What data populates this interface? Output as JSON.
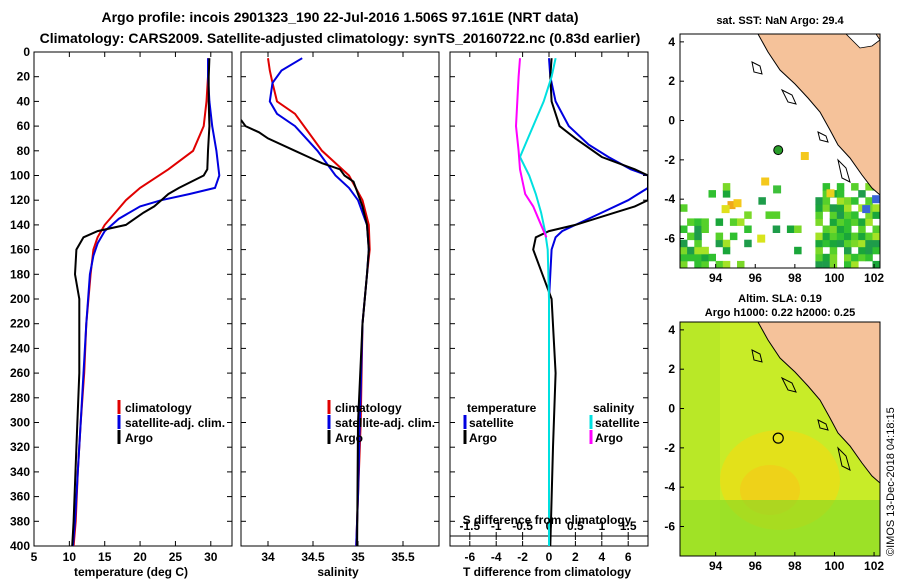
{
  "title": {
    "line1": "Argo profile: incois 2901323_190 22-Jul-2016 1.506S 97.161E (NRT data)",
    "line2": "Climatology: CARS2009. Satellite-adjusted climatology: synTS_20160722.nc (0.83d earlier)"
  },
  "colors": {
    "climatology": "#e00000",
    "satellite": "#0000e0",
    "argo": "#000000",
    "satellite_salinity": "#00e0e0",
    "argo_salinity": "#ff00ff",
    "land": "#f5c29a",
    "sea_sla": "#c8ec28"
  },
  "chart_data": [
    {
      "type": "line",
      "name": "temperature-profile",
      "xlabel": "temperature (deg C)",
      "xlim": [
        5,
        33
      ],
      "ylim": [
        400,
        0
      ],
      "xticks": [
        "5",
        "10",
        "15",
        "20",
        "25",
        "30"
      ],
      "yticks": [
        "0",
        "20",
        "40",
        "60",
        "80",
        "100",
        "120",
        "140",
        "160",
        "180",
        "200",
        "220",
        "240",
        "260",
        "280",
        "300",
        "320",
        "340",
        "360",
        "380",
        "400"
      ],
      "legend": [
        "climatology",
        "satellite-adj. clim.",
        "Argo"
      ],
      "series": [
        {
          "name": "climatology",
          "color": "#e00000",
          "x": [
            29.6,
            29.6,
            29.4,
            29.0,
            27.5,
            24.0,
            20.0,
            18.0,
            16.5,
            15.0,
            14.0,
            13.4,
            13.0,
            12.4,
            12.1,
            11.6,
            11.2,
            10.9,
            10.6
          ],
          "y": [
            5,
            20,
            40,
            60,
            80,
            95,
            110,
            120,
            130,
            140,
            150,
            160,
            180,
            220,
            260,
            300,
            340,
            380,
            400
          ]
        },
        {
          "name": "satellite-adj. clim.",
          "color": "#0000e0",
          "x": [
            29.6,
            29.6,
            29.8,
            30.2,
            30.8,
            31.2,
            30.6,
            27.0,
            23.0,
            20.0,
            17.0,
            15.0,
            14.0,
            13.4,
            12.9,
            12.4,
            12.0,
            11.6,
            11.2,
            10.8,
            10.5
          ],
          "y": [
            5,
            20,
            40,
            60,
            80,
            100,
            110,
            115,
            120,
            125,
            135,
            145,
            155,
            165,
            180,
            220,
            260,
            300,
            340,
            380,
            400
          ]
        },
        {
          "name": "Argo",
          "color": "#000000",
          "x": [
            29.8,
            29.7,
            29.7,
            29.8,
            29.6,
            29.5,
            29.0,
            25.5,
            24.0,
            23.0,
            22.0,
            20.5,
            18.0,
            14.0,
            12.0,
            11.0,
            10.8,
            11.4,
            11.4,
            11.0,
            10.6,
            10.4
          ],
          "y": [
            5,
            20,
            40,
            60,
            80,
            95,
            100,
            110,
            115,
            120,
            125,
            130,
            140,
            145,
            150,
            160,
            180,
            200,
            260,
            320,
            380,
            400
          ]
        }
      ]
    },
    {
      "type": "line",
      "name": "salinity-profile",
      "xlabel": "salinity",
      "xlim": [
        33.7,
        35.9
      ],
      "ylim": [
        400,
        0
      ],
      "xticks": [
        "34",
        "34.5",
        "35",
        "35.5"
      ],
      "legend": [
        "climatology",
        "satellite-adj. clim.",
        "Argo"
      ],
      "series": [
        {
          "name": "climatology",
          "color": "#e00000",
          "x": [
            34.0,
            34.02,
            34.05,
            34.1,
            34.3,
            34.6,
            34.9,
            35.05,
            35.12,
            35.13,
            35.1,
            35.05,
            35.03,
            35.0,
            34.98
          ],
          "y": [
            5,
            15,
            25,
            40,
            50,
            80,
            100,
            120,
            140,
            160,
            180,
            220,
            300,
            360,
            400
          ]
        },
        {
          "name": "satellite-adj. clim.",
          "color": "#0000e0",
          "x": [
            34.38,
            34.15,
            34.05,
            34.02,
            34.1,
            34.3,
            34.55,
            34.75,
            34.9,
            35.0,
            35.1,
            35.12,
            35.1,
            35.05,
            35.02,
            35.0,
            34.98
          ],
          "y": [
            5,
            15,
            25,
            40,
            50,
            60,
            80,
            100,
            110,
            120,
            140,
            160,
            180,
            220,
            300,
            360,
            400
          ]
        },
        {
          "name": "Argo",
          "color": "#000000",
          "x": [
            33.7,
            33.75,
            33.9,
            34.0,
            34.3,
            34.45,
            34.6,
            34.8,
            34.85,
            34.95,
            35.0,
            35.05,
            35.1,
            35.12,
            35.1,
            35.05,
            35.0,
            34.99
          ],
          "y": [
            55,
            60,
            65,
            70,
            80,
            85,
            90,
            95,
            100,
            105,
            115,
            125,
            140,
            160,
            180,
            220,
            300,
            400
          ]
        }
      ]
    },
    {
      "type": "line",
      "name": "difference-profile",
      "xlabel": "T difference from climatology",
      "xlabel_top": "S difference from climatology",
      "xlim": [
        -7.5,
        7.5
      ],
      "ylim": [
        400,
        0
      ],
      "xticks": [
        "-6",
        "-4",
        "-2",
        "0",
        "2",
        "4",
        "6"
      ],
      "xticks_top": [
        "-1.5",
        "-1",
        "-0.5",
        "0",
        "0.5",
        "1",
        "1.5"
      ],
      "legend_temperature_title": "temperature",
      "legend_salinity_title": "salinity",
      "legend_items": [
        "satellite",
        "Argo",
        "satellite",
        "Argo"
      ],
      "series": [
        {
          "name": "temperature satellite",
          "color": "#0000e0",
          "x": [
            0,
            0.1,
            0.5,
            1.5,
            3.0,
            4.5,
            6.2,
            7.5,
            7.5,
            6.0,
            4.0,
            2.0,
            1.0,
            0.5,
            0.2,
            0.0,
            0.0
          ],
          "y": [
            5,
            20,
            40,
            60,
            75,
            85,
            95,
            100,
            110,
            120,
            130,
            140,
            145,
            150,
            160,
            200,
            400
          ]
        },
        {
          "name": "temperature Argo",
          "color": "#000000",
          "x": [
            0.2,
            0.1,
            0.2,
            0.8,
            2.0,
            4.0,
            6.5,
            7.5,
            7.5,
            6.5,
            5.0,
            2.0,
            0.0,
            -1.0,
            -1.2,
            -0.5,
            0.2,
            0.5,
            0.3,
            0.1
          ],
          "y": [
            5,
            20,
            40,
            60,
            70,
            85,
            95,
            100,
            120,
            125,
            130,
            140,
            145,
            150,
            160,
            180,
            200,
            260,
            320,
            400
          ]
        },
        {
          "name": "salinity satellite",
          "color": "#00e0e0",
          "x": [
            0.5,
            0.2,
            -0.4,
            -1.0,
            -1.6,
            -2.2,
            -1.5,
            -1.0,
            -0.6,
            -0.3,
            -0.1,
            0.0,
            0.0
          ],
          "y": [
            5,
            20,
            40,
            55,
            70,
            85,
            100,
            115,
            130,
            145,
            160,
            200,
            400
          ]
        },
        {
          "name": "salinity Argo",
          "color": "#ff00ff",
          "x": [
            -2.2,
            -2.3,
            -2.4,
            -2.5,
            -2.3,
            -2.2,
            -2.0,
            -1.8,
            -1.2,
            -0.8,
            -0.4,
            -0.2
          ],
          "y": [
            5,
            20,
            40,
            60,
            80,
            95,
            105,
            115,
            125,
            135,
            145,
            150
          ]
        }
      ]
    },
    {
      "type": "heatmap",
      "name": "sst-map",
      "title": "sat. SST: NaN Argo: 29.4",
      "xlim": [
        92.2,
        102.3
      ],
      "ylim": [
        -7.5,
        4.4
      ],
      "xticks": [
        "94",
        "96",
        "98",
        "100",
        "102"
      ],
      "yticks": [
        "4",
        "2",
        "0",
        "-2",
        "-4",
        "-6"
      ],
      "argo_position": {
        "lon": 97.161,
        "lat": -1.506
      }
    },
    {
      "type": "heatmap",
      "name": "sla-map",
      "title_line1": "Altim. SLA: 0.19",
      "title_line2": "Argo h1000: 0.22 h2000: 0.25",
      "xlim": [
        92.2,
        102.3
      ],
      "ylim": [
        -7.5,
        4.4
      ],
      "xticks": [
        "94",
        "96",
        "98",
        "100",
        "102"
      ],
      "yticks": [
        "4",
        "2",
        "0",
        "-2",
        "-4",
        "-6"
      ],
      "argo_position": {
        "lon": 97.161,
        "lat": -1.506
      }
    }
  ],
  "credit": "©IMOS 13-Dec-2018 04:18:15"
}
